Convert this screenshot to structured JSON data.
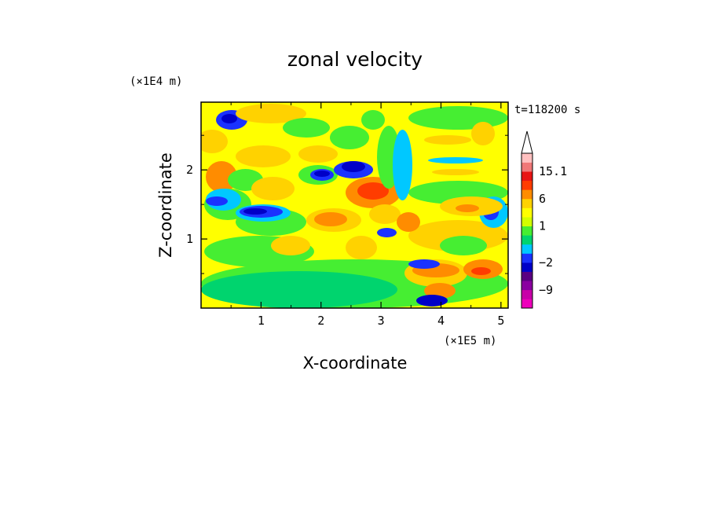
{
  "chart_data": {
    "type": "heatmap",
    "title": "zonal velocity",
    "xlabel": "X-coordinate",
    "ylabel": "Z-coordinate",
    "x_unit": "(×1E5 m)",
    "y_unit": "(×1E4 m)",
    "time_label": "t=118200 s",
    "xlim": [
      0,
      5.12
    ],
    "ylim": [
      0,
      2.98
    ],
    "x_ticks": [
      "1",
      "2",
      "3",
      "4",
      "5"
    ],
    "y_ticks": [
      "1",
      "2"
    ],
    "colorbar": {
      "levels": [
        -15,
        -12,
        -9,
        -6,
        -4,
        -2,
        -1,
        0,
        0.5,
        1,
        2,
        4,
        6,
        9,
        12,
        15.1
      ],
      "colors": [
        "#ee00bb",
        "#c800a8",
        "#8a00a0",
        "#5a0082",
        "#0000c8",
        "#1a32ff",
        "#00c8ff",
        "#00d46e",
        "#46ee32",
        "#d2ff00",
        "#ffff00",
        "#ffd200",
        "#ff8c00",
        "#ff3c00",
        "#e81414",
        "#f07878",
        "#ffc0c0"
      ],
      "tick_labels": [
        "15.1",
        "6",
        "1",
        "−2",
        "−9"
      ],
      "extend": "max"
    },
    "background_color": "#ffff00"
  }
}
